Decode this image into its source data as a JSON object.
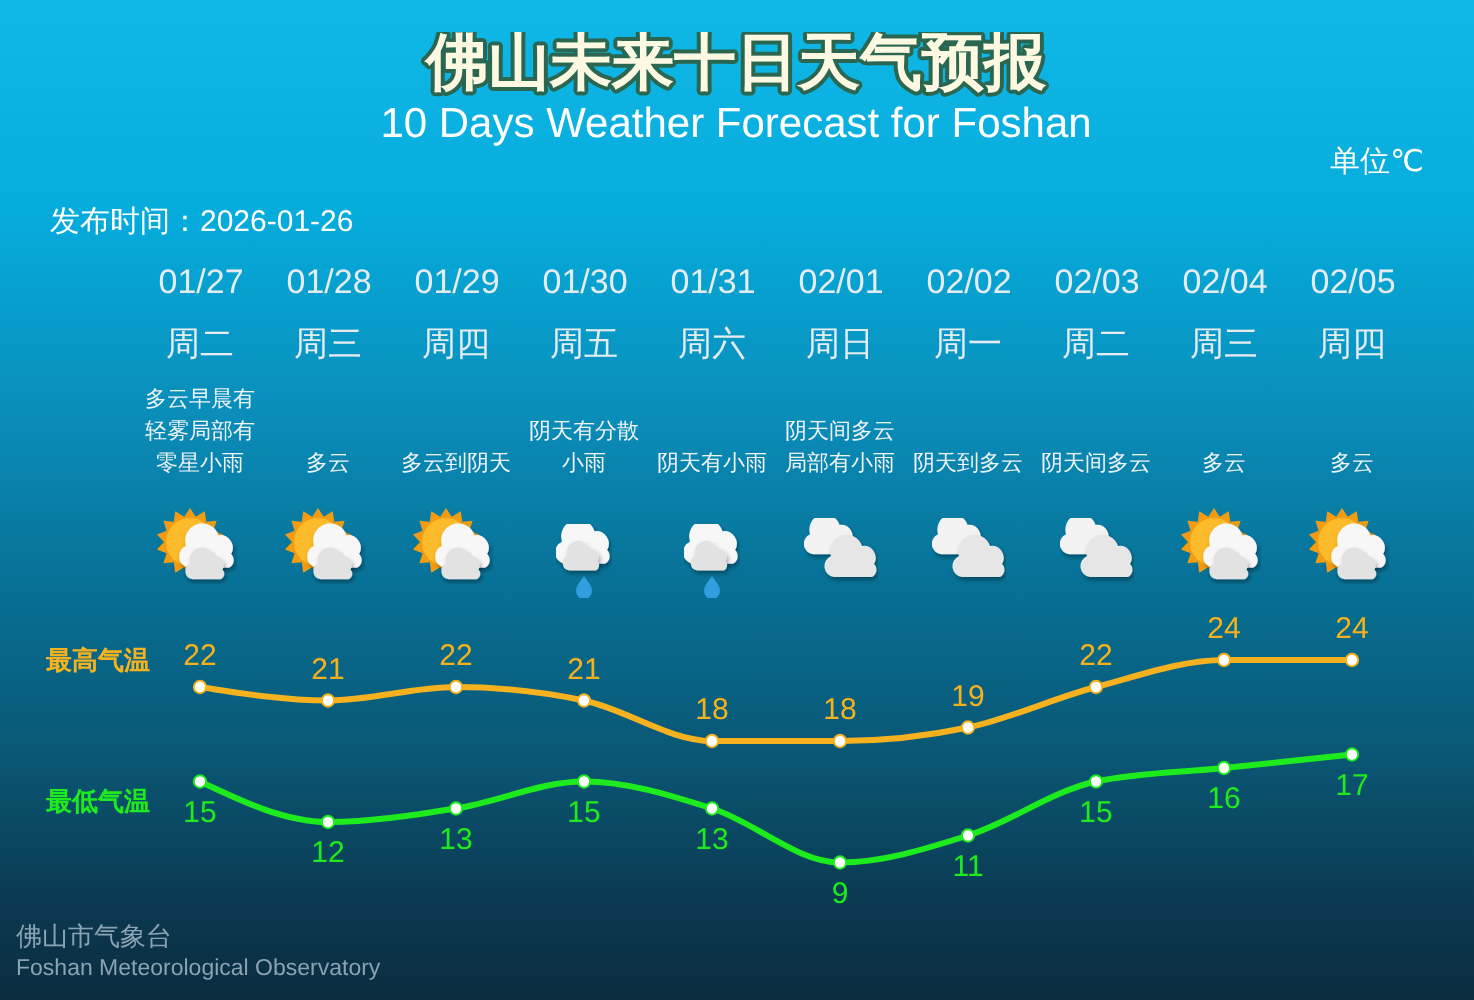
{
  "chart_data": {
    "type": "line",
    "title": "佛山未来十日天气预报",
    "subtitle": "10 Days Weather Forecast for Foshan",
    "categories": [
      "01/27",
      "01/28",
      "01/29",
      "01/30",
      "01/31",
      "02/01",
      "02/02",
      "02/03",
      "02/04",
      "02/05"
    ],
    "series": [
      {
        "name": "最高气温",
        "color": "#f5b21e",
        "values": [
          22,
          21,
          22,
          21,
          18,
          18,
          19,
          22,
          24,
          24
        ]
      },
      {
        "name": "最低气温",
        "color": "#1eeb1e",
        "values": [
          15,
          12,
          13,
          15,
          13,
          9,
          11,
          15,
          16,
          17
        ]
      }
    ],
    "data_labels": true,
    "marker": "circle",
    "tick_labels": "x",
    "annotations": [
      "单位℃",
      "发布时间：2026-01-26",
      "佛山市气象台",
      "Foshan Meteorological Observatory",
      "周二",
      "多云早晨有轻雾局部有零星小雨",
      "周三",
      "多云",
      "周四",
      "多云到阴天",
      "周五",
      "阴天有分散小雨",
      "周六",
      "阴天有小雨",
      "周日",
      "阴天间多云局部有小雨",
      "周一",
      "阴天到多云",
      "周二",
      "阴天间多云",
      "周三",
      "多云",
      "周四",
      "多云"
    ]
  }
}
